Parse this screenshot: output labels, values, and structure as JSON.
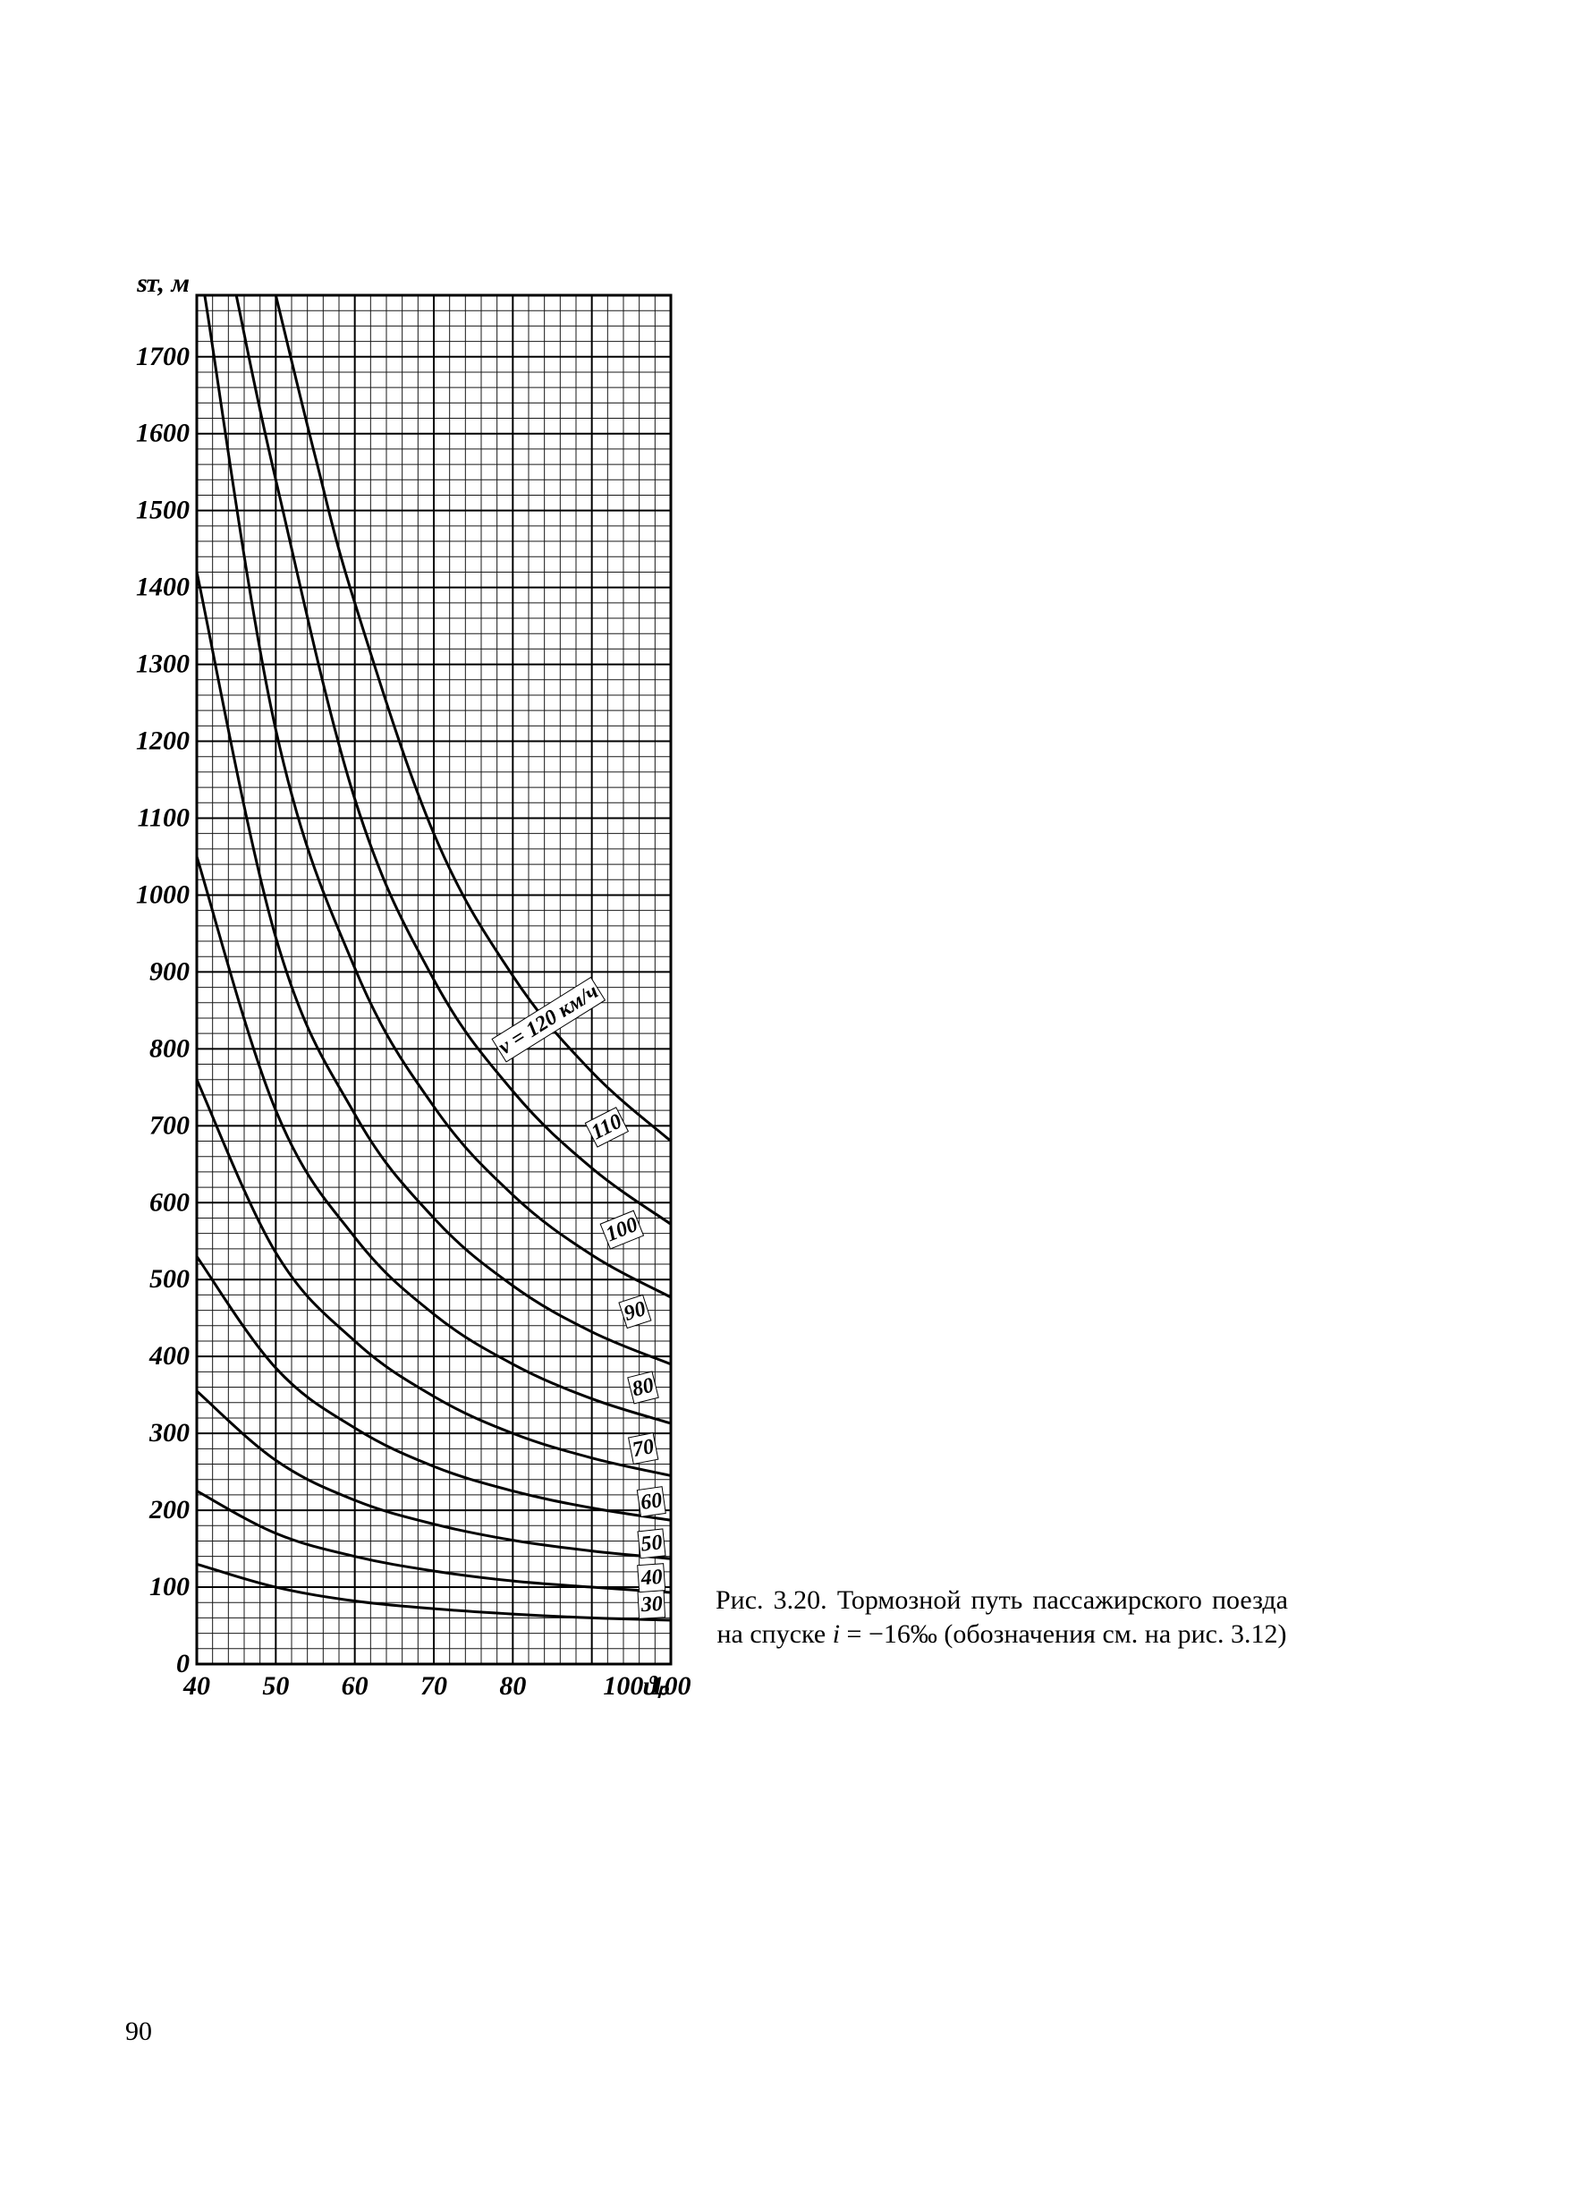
{
  "page_number": "90",
  "caption": {
    "prefix": "Рис. 3.20. Тормозной путь пассажирского поезда на спуске ",
    "formula_var": "i",
    "formula_eq": " = −16‰",
    "suffix": " (обозначения см. на рис. 3.12)"
  },
  "chart": {
    "type": "line",
    "background_color": "#ffffff",
    "grid_color": "#000000",
    "text_color": "#000000",
    "label_fontsize_pt": 22,
    "tick_fontsize_pt": 22,
    "tick_font_style": "italic",
    "axis_line_width": 2,
    "minor_grid_width": 1,
    "curve_line_width": 3,
    "x": {
      "title": "100ϑₚ",
      "min": 40,
      "max": 100,
      "tick_step": 10,
      "minor_step": 2,
      "ticks": [
        40,
        50,
        60,
        70,
        80,
        90,
        100
      ],
      "tick_labels": [
        "40",
        "50",
        "60",
        "70",
        "80",
        "",
        "100"
      ]
    },
    "y": {
      "title": "sᴛ, м",
      "min": 0,
      "max": 1780,
      "tick_step": 100,
      "minor_step": 20,
      "ticks": [
        0,
        100,
        200,
        300,
        400,
        500,
        600,
        700,
        800,
        900,
        1000,
        1100,
        1200,
        1300,
        1400,
        1500,
        1600,
        1700
      ],
      "tick_labels": [
        "0",
        "100",
        "200",
        "300",
        "400",
        "500",
        "600",
        "700",
        "800",
        "900",
        "1000",
        "1100",
        "1200",
        "1300",
        "1400",
        "1500",
        "1600",
        "1700"
      ]
    },
    "curve_line_label": "v=120 км/ч",
    "curves": [
      {
        "label": "30",
        "label_xy": [
          99,
          70
        ],
        "label_angle": -3,
        "points": [
          [
            40,
            130
          ],
          [
            50,
            100
          ],
          [
            60,
            82
          ],
          [
            70,
            72
          ],
          [
            80,
            65
          ],
          [
            90,
            60
          ],
          [
            100,
            57
          ]
        ]
      },
      {
        "label": "40",
        "label_xy": [
          99,
          105
        ],
        "label_angle": -4,
        "points": [
          [
            40,
            225
          ],
          [
            50,
            170
          ],
          [
            60,
            140
          ],
          [
            70,
            121
          ],
          [
            80,
            108
          ],
          [
            90,
            100
          ],
          [
            100,
            93
          ]
        ]
      },
      {
        "label": "50",
        "label_xy": [
          99,
          150
        ],
        "label_angle": -6,
        "points": [
          [
            40,
            355
          ],
          [
            50,
            265
          ],
          [
            60,
            213
          ],
          [
            70,
            182
          ],
          [
            80,
            161
          ],
          [
            90,
            147
          ],
          [
            100,
            137
          ]
        ]
      },
      {
        "label": "60",
        "label_xy": [
          99,
          205
        ],
        "label_angle": -8,
        "points": [
          [
            40,
            530
          ],
          [
            50,
            385
          ],
          [
            60,
            307
          ],
          [
            70,
            257
          ],
          [
            80,
            225
          ],
          [
            90,
            203
          ],
          [
            100,
            187
          ]
        ]
      },
      {
        "label": "70",
        "label_xy": [
          98,
          275
        ],
        "label_angle": -11,
        "points": [
          [
            40,
            760
          ],
          [
            50,
            535
          ],
          [
            60,
            420
          ],
          [
            70,
            348
          ],
          [
            80,
            300
          ],
          [
            90,
            268
          ],
          [
            100,
            245
          ]
        ]
      },
      {
        "label": "80",
        "label_xy": [
          98,
          355
        ],
        "label_angle": -14,
        "points": [
          [
            40,
            1050
          ],
          [
            50,
            720
          ],
          [
            60,
            555
          ],
          [
            70,
            455
          ],
          [
            80,
            390
          ],
          [
            90,
            345
          ],
          [
            100,
            313
          ]
        ]
      },
      {
        "label": "90",
        "label_xy": [
          97,
          455
        ],
        "label_angle": -18,
        "points": [
          [
            40,
            1420
          ],
          [
            50,
            945
          ],
          [
            60,
            715
          ],
          [
            70,
            580
          ],
          [
            80,
            492
          ],
          [
            90,
            432
          ],
          [
            100,
            390
          ]
        ]
      },
      {
        "label": "100",
        "label_xy": [
          96,
          565
        ],
        "label_angle": -22,
        "points": [
          [
            41,
            1780
          ],
          [
            50,
            1215
          ],
          [
            60,
            905
          ],
          [
            70,
            725
          ],
          [
            80,
            610
          ],
          [
            90,
            532
          ],
          [
            100,
            477
          ]
        ]
      },
      {
        "label": "110",
        "label_xy": [
          94,
          700
        ],
        "label_angle": -27,
        "points": [
          [
            45,
            1780
          ],
          [
            50,
            1540
          ],
          [
            60,
            1125
          ],
          [
            70,
            890
          ],
          [
            80,
            745
          ],
          [
            90,
            645
          ],
          [
            100,
            572
          ]
        ]
      },
      {
        "label": "v = 120 км/ч",
        "label_xy": [
          91,
          870
        ],
        "label_angle": -32,
        "points": [
          [
            50,
            1780
          ],
          [
            55,
            1570
          ],
          [
            60,
            1380
          ],
          [
            70,
            1080
          ],
          [
            80,
            895
          ],
          [
            90,
            770
          ],
          [
            100,
            680
          ]
        ]
      }
    ]
  }
}
